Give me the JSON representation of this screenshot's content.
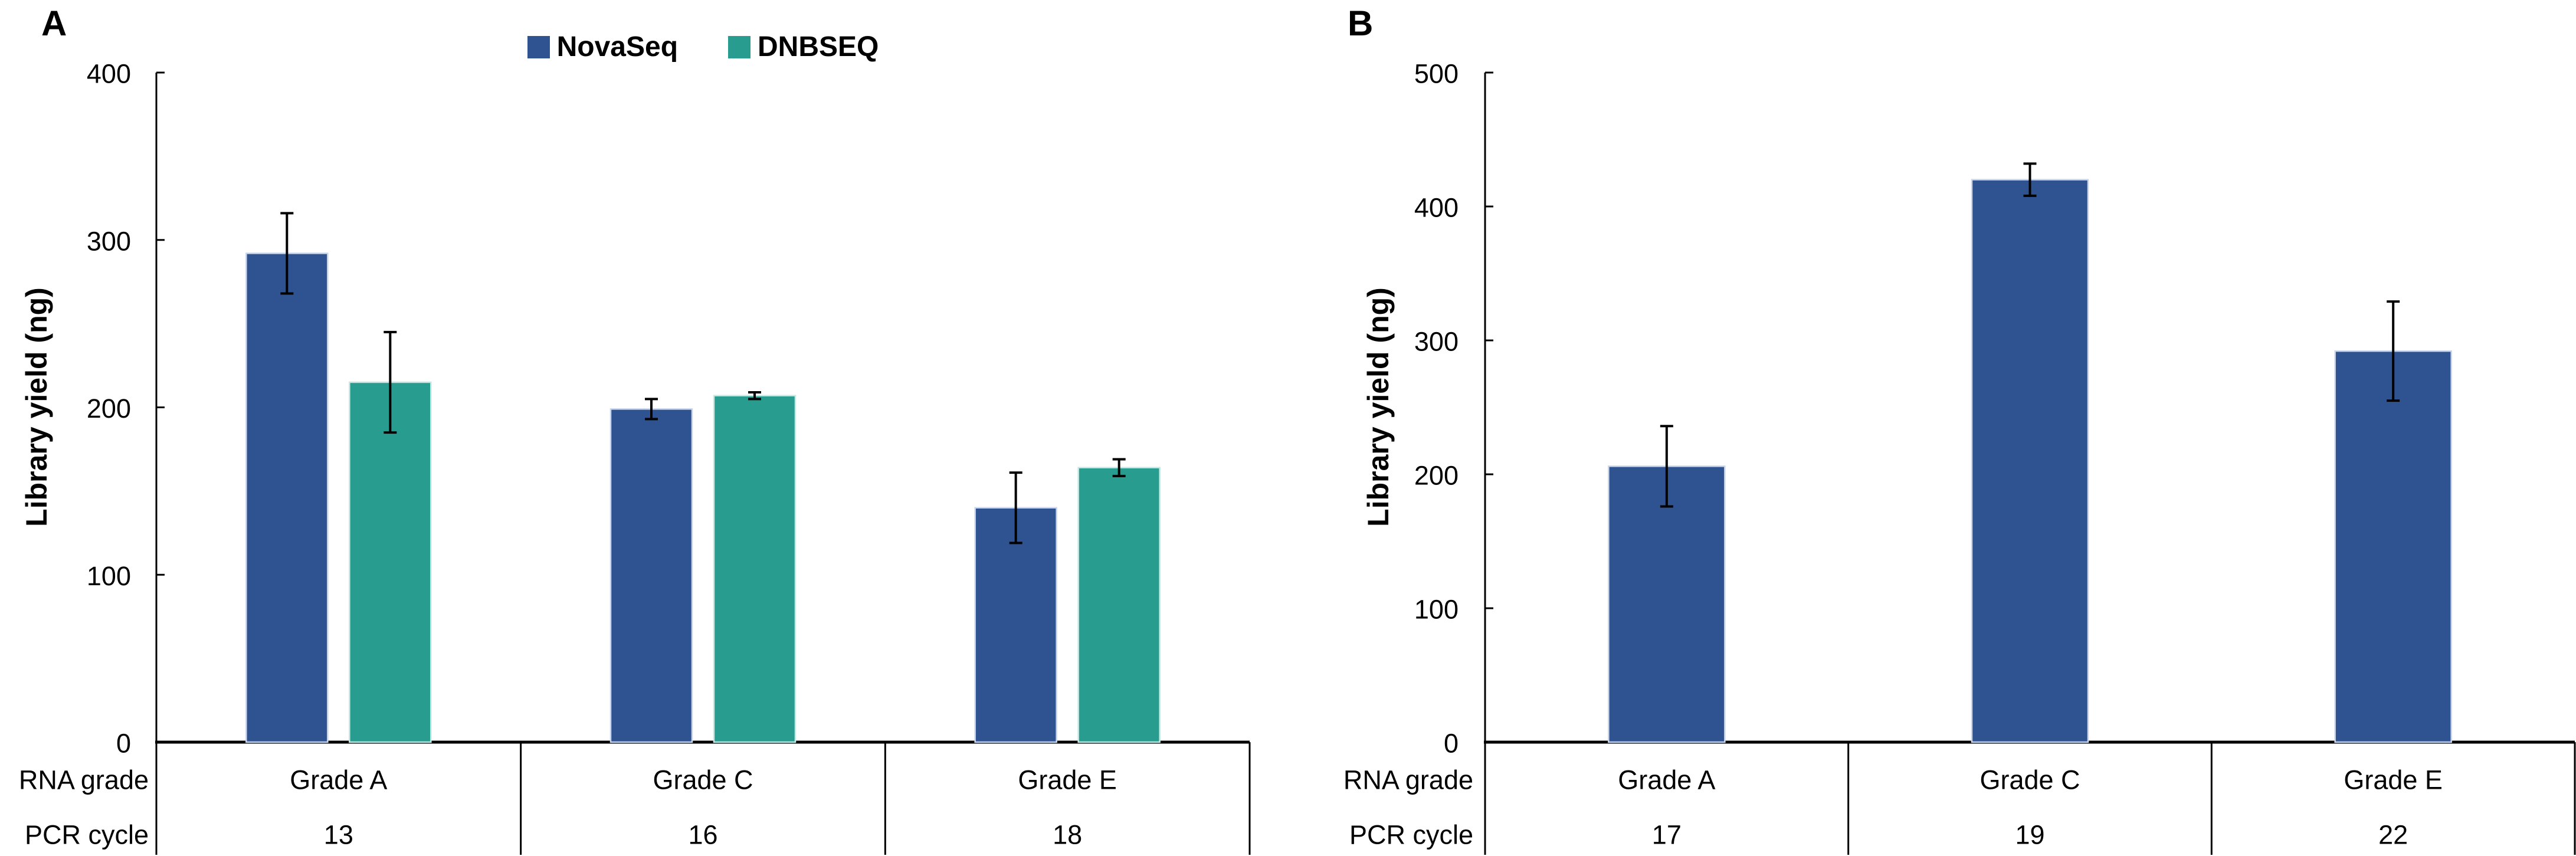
{
  "figure": {
    "background": "#ffffff",
    "text_color": "#000000",
    "axis_color": "#000000"
  },
  "chart_data": [
    {
      "type": "bar",
      "panel_label": "A",
      "title": "",
      "ylabel": "Library yield (ng)",
      "ylim": [
        0,
        400
      ],
      "yticks": [
        0,
        100,
        200,
        300,
        400
      ],
      "grid": false,
      "legend_position": "top-center",
      "categories": [
        "Grade A",
        "Grade C",
        "Grade E"
      ],
      "x_row_labels": {
        "grade": "RNA grade",
        "cycle": "PCR cycle"
      },
      "pcr_cycles": [
        "13",
        "16",
        "18"
      ],
      "series": [
        {
          "name": "NovaSeq",
          "color": "#2F5391",
          "border": "#C9D5EA",
          "values": [
            292,
            199,
            140
          ],
          "errors": [
            24,
            6,
            21
          ]
        },
        {
          "name": "DNBSEQ",
          "color": "#299C90",
          "border": "#C6E7E2",
          "values": [
            215,
            207,
            164
          ],
          "errors": [
            30,
            2,
            5
          ]
        }
      ]
    },
    {
      "type": "bar",
      "panel_label": "B",
      "title": "",
      "ylabel": "Library yield (ng)",
      "ylim": [
        0,
        500
      ],
      "yticks": [
        0,
        100,
        200,
        300,
        400,
        500
      ],
      "grid": false,
      "legend_position": "none",
      "categories": [
        "Grade A",
        "Grade C",
        "Grade E"
      ],
      "x_row_labels": {
        "grade": "RNA grade",
        "cycle": "PCR cycle"
      },
      "pcr_cycles": [
        "17",
        "19",
        "22"
      ],
      "series": [
        {
          "name": "NovaSeq",
          "color": "#2F5391",
          "border": "#C9D5EA",
          "values": [
            206,
            420,
            292
          ],
          "errors": [
            30,
            12,
            37
          ]
        }
      ]
    }
  ]
}
